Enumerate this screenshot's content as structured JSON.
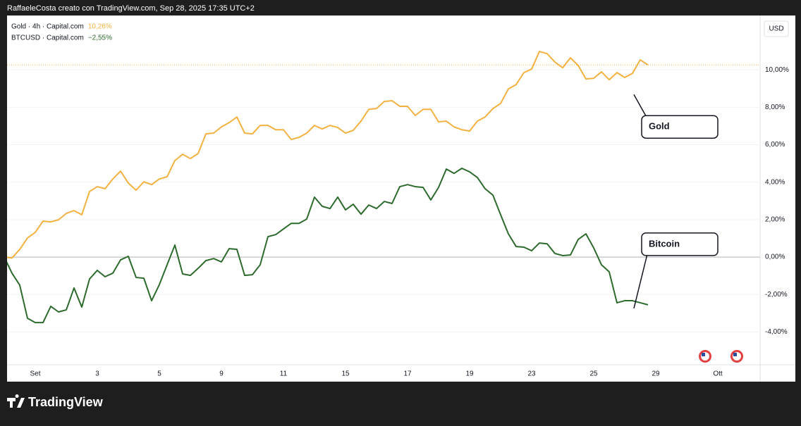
{
  "header": "RaffaeleCosta creato con TradingView.com, Sep 28, 2025 17:35 UTC+2",
  "brand": "TradingView",
  "chart_data": {
    "type": "line",
    "currency": "USD",
    "categories": [
      null,
      null,
      null,
      null,
      "Set",
      null,
      null,
      null,
      null,
      null,
      null,
      null,
      "3",
      null,
      null,
      null,
      null,
      null,
      null,
      null,
      "5",
      null,
      null,
      null,
      null,
      null,
      null,
      null,
      "9",
      null,
      null,
      null,
      null,
      null,
      null,
      null,
      "11",
      null,
      null,
      null,
      null,
      null,
      null,
      null,
      "15",
      null,
      null,
      null,
      null,
      null,
      null,
      null,
      "17",
      null,
      null,
      null,
      null,
      null,
      null,
      null,
      "19",
      null,
      null,
      null,
      null,
      null,
      null,
      null,
      "23",
      null,
      null,
      null,
      null,
      null,
      null,
      null,
      "25",
      null,
      null,
      null,
      null,
      null,
      null,
      null,
      "29",
      null,
      null,
      null,
      null,
      null,
      null,
      null,
      "Ott"
    ],
    "series": [
      {
        "name": "Gold · 4h · Capital.com",
        "change_label": "10,26%",
        "color": "#f2b141",
        "annotation": "Gold",
        "price_line": true,
        "values": [
          0,
          -0.05,
          0.41,
          1.02,
          1.32,
          1.92,
          1.88,
          1.99,
          2.33,
          2.48,
          2.26,
          3.5,
          3.76,
          3.65,
          4.17,
          4.59,
          3.95,
          3.57,
          4.02,
          3.87,
          4.17,
          4.29,
          5.15,
          5.49,
          5.26,
          5.53,
          6.58,
          6.62,
          6.95,
          7.18,
          7.48,
          6.62,
          6.58,
          7.03,
          7.03,
          6.8,
          6.8,
          6.28,
          6.39,
          6.62,
          7.03,
          6.84,
          7.03,
          6.92,
          6.62,
          6.77,
          7.26,
          7.89,
          7.93,
          8.31,
          8.35,
          8.05,
          8.05,
          7.56,
          7.89,
          7.89,
          7.22,
          7.26,
          6.95,
          6.8,
          6.73,
          7.26,
          7.48,
          7.93,
          8.2,
          8.98,
          9.21,
          9.85,
          10.04,
          10.98,
          10.86,
          10.41,
          10.11,
          10.64,
          10.23,
          9.51,
          9.55,
          9.89,
          9.47,
          9.85,
          9.59,
          9.81,
          10.53,
          10.26,
          null,
          null,
          null,
          null,
          null,
          null,
          null,
          null,
          null
        ]
      },
      {
        "name": "BTCUSD · Capital.com",
        "change_label": "−2,55%",
        "color": "#2d6a2d",
        "annotation": "Bitcoin",
        "price_line": false,
        "values": [
          0,
          -0.86,
          -1.5,
          -3.27,
          -3.5,
          -3.5,
          -2.63,
          -2.93,
          -2.82,
          -1.65,
          -2.67,
          -1.17,
          -0.71,
          -1.05,
          -0.86,
          -0.15,
          0.04,
          -1.09,
          -1.13,
          -2.33,
          -1.47,
          -0.41,
          0.64,
          -0.9,
          -0.98,
          -0.6,
          -0.19,
          -0.08,
          -0.26,
          0.45,
          0.41,
          -0.98,
          -0.94,
          -0.41,
          1.09,
          1.2,
          1.5,
          1.8,
          1.8,
          2.03,
          3.2,
          2.71,
          2.59,
          3.2,
          2.52,
          2.82,
          2.29,
          2.78,
          2.59,
          2.97,
          2.86,
          3.76,
          3.87,
          3.76,
          3.72,
          3.05,
          3.72,
          4.7,
          4.47,
          4.74,
          4.55,
          4.25,
          3.65,
          3.31,
          2.26,
          1.24,
          0.56,
          0.53,
          0.34,
          0.75,
          0.71,
          0.19,
          0.08,
          0.11,
          0.94,
          1.24,
          0.49,
          -0.41,
          -0.79,
          -2.44,
          -2.33,
          -2.33,
          -2.44,
          -2.55,
          null,
          null,
          null,
          null,
          null,
          null,
          null,
          null,
          null
        ]
      }
    ],
    "ylim": [
      -5.75,
      12.9
    ],
    "yticks": [
      {
        "value": -4,
        "label": "-4,00%"
      },
      {
        "value": -2,
        "label": "-2,00%"
      },
      {
        "value": 0,
        "label": "0,00%"
      },
      {
        "value": 2,
        "label": "2,00%"
      },
      {
        "value": 4,
        "label": "4,00%"
      },
      {
        "value": 6,
        "label": "6,00%"
      },
      {
        "value": 8,
        "label": "8,00%"
      },
      {
        "value": 10,
        "label": "10,00%"
      }
    ],
    "grid": true
  }
}
